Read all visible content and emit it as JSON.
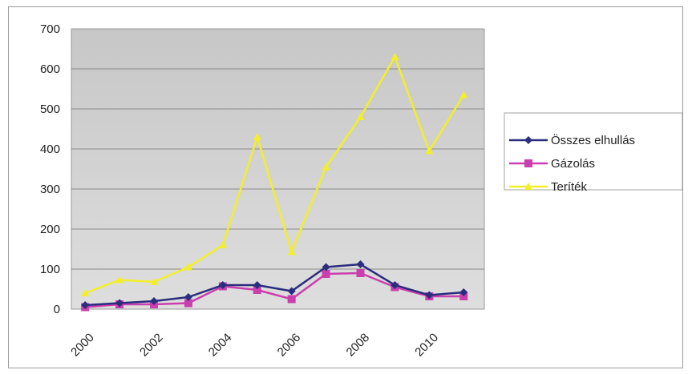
{
  "chart_data": {
    "type": "line",
    "x": [
      2000,
      2001,
      2002,
      2003,
      2004,
      2005,
      2006,
      2007,
      2008,
      2009,
      2010,
      2011
    ],
    "x_tick_labels": [
      "2000",
      "2002",
      "2004",
      "2006",
      "2008",
      "2010"
    ],
    "y_tick_labels": [
      "0",
      "100",
      "200",
      "300",
      "400",
      "500",
      "600",
      "700"
    ],
    "ylim": [
      0,
      700
    ],
    "grid": true,
    "legend_position": "right",
    "series": [
      {
        "name": "Összes elhullás",
        "color": "#2b2d7e",
        "marker": "diamond",
        "values": [
          10,
          15,
          20,
          30,
          60,
          60,
          45,
          105,
          112,
          60,
          35,
          42
        ]
      },
      {
        "name": "Gázolás",
        "color": "#c93fae",
        "marker": "square",
        "values": [
          5,
          12,
          12,
          15,
          57,
          48,
          25,
          88,
          90,
          55,
          32,
          32
        ]
      },
      {
        "name": "Teríték",
        "color": "#f2ef2a",
        "marker": "triangle",
        "values": [
          40,
          73,
          68,
          105,
          160,
          430,
          143,
          355,
          480,
          630,
          395,
          535
        ]
      }
    ]
  }
}
